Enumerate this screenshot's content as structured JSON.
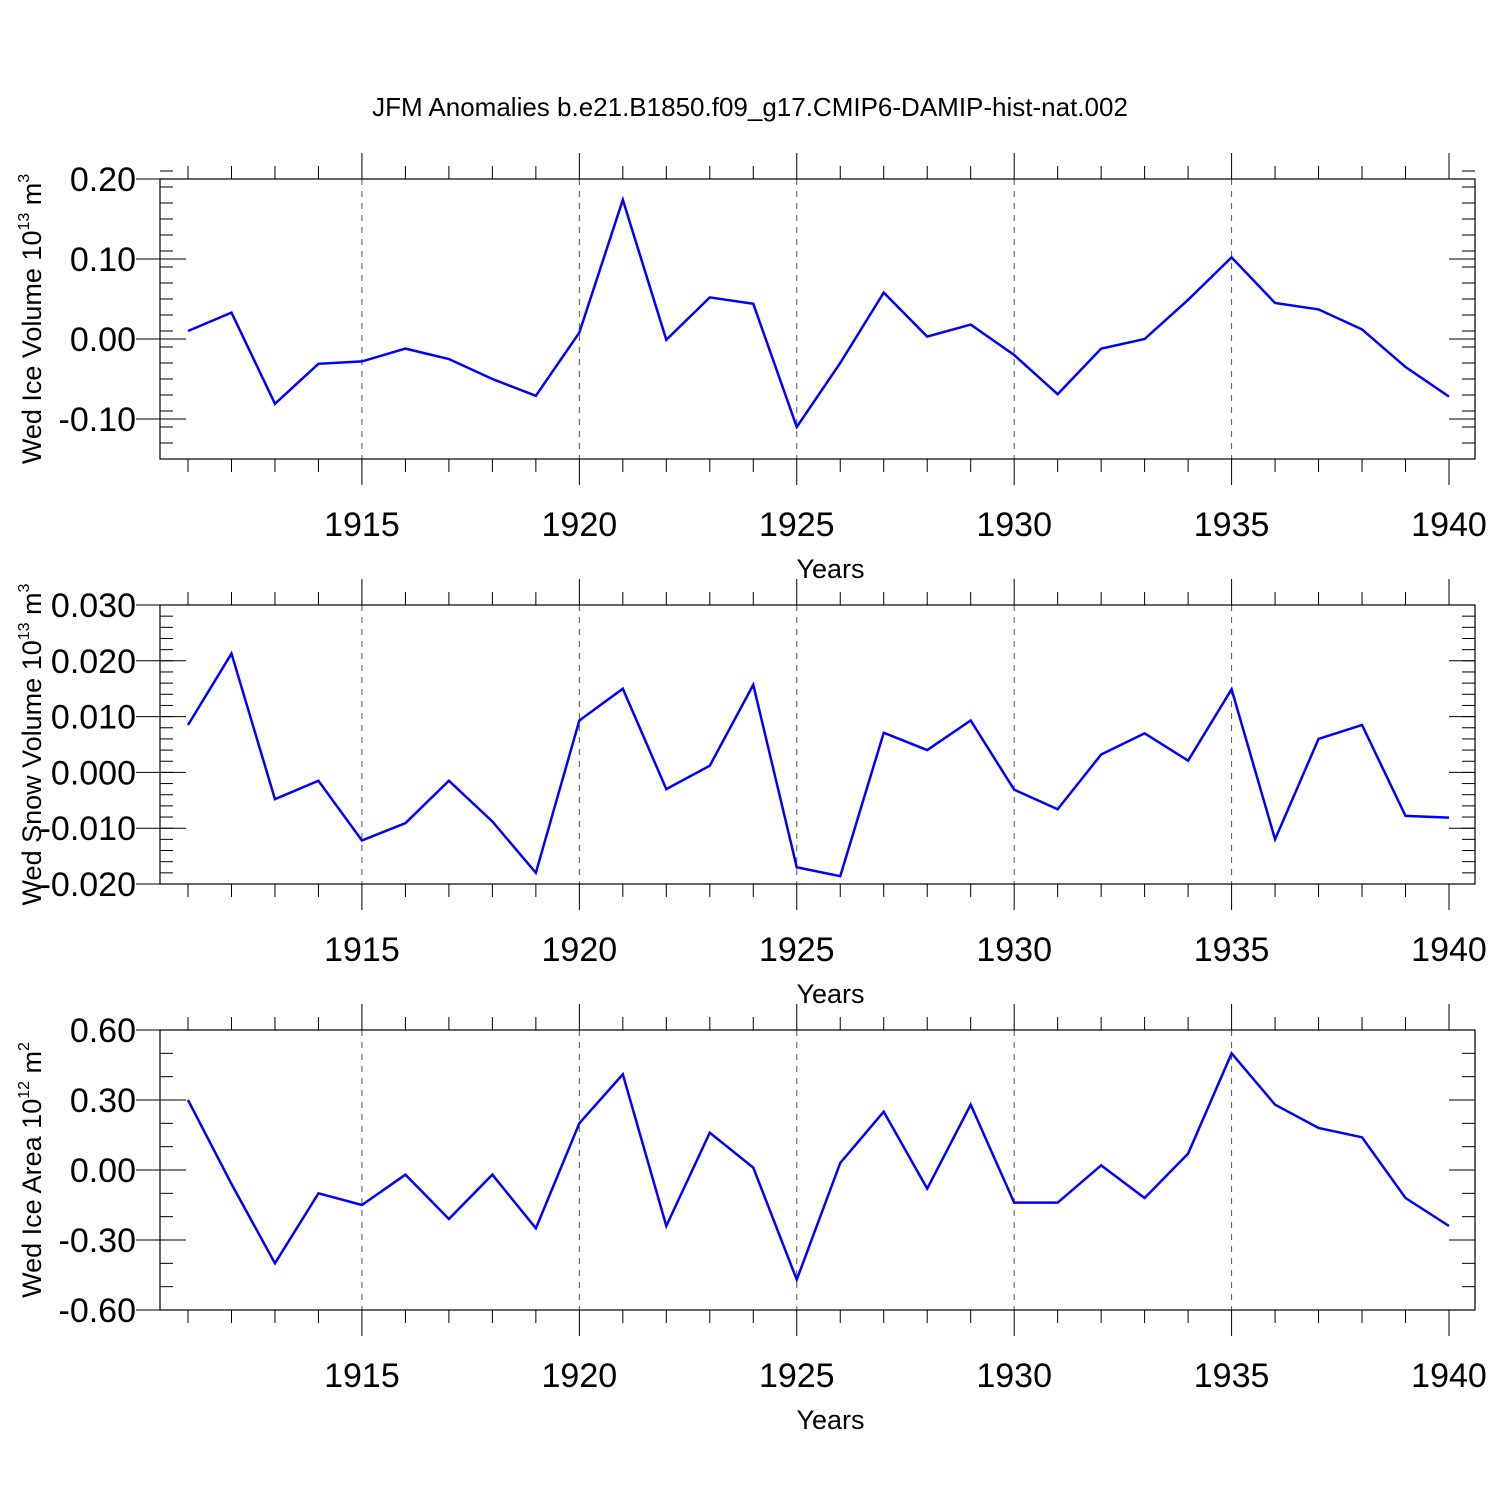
{
  "figure_title": "JFM Anomalies b.e21.B1850.f09_g17.CMIP6-DAMIP-hist-nat.002",
  "chart_data": [
    {
      "type": "line",
      "title": "",
      "ylabel": "Wed Ice Volume 10",
      "ylabel_exp": "13",
      "ylabel_unit": " m",
      "ylabel_unit_exp": "3",
      "xlabel": "Years",
      "xlim": [
        1911,
        1940
      ],
      "ylim": [
        -0.15,
        0.2
      ],
      "yticks": [
        0.2,
        0.1,
        0.0,
        -0.1
      ],
      "ytick_labels": [
        "0.20",
        "0.10",
        "0.00",
        "-0.10"
      ],
      "yminor_step": 0.02,
      "xticks": [
        1915,
        1920,
        1925,
        1930,
        1935,
        1940
      ],
      "xtick_labels": [
        "1915",
        "1920",
        "1925",
        "1930",
        "1935",
        "1940"
      ],
      "grid": "vertical dashed at major x ticks",
      "color": "#0000ff",
      "x": [
        1911,
        1912,
        1913,
        1914,
        1915,
        1916,
        1917,
        1918,
        1919,
        1920,
        1921,
        1922,
        1923,
        1924,
        1925,
        1926,
        1927,
        1928,
        1929,
        1930,
        1931,
        1932,
        1933,
        1934,
        1935,
        1936,
        1937,
        1938,
        1939,
        1940
      ],
      "values": [
        0.01,
        0.033,
        -0.081,
        -0.031,
        -0.028,
        -0.012,
        -0.025,
        -0.05,
        -0.071,
        0.008,
        0.174,
        -0.001,
        0.052,
        0.044,
        -0.11,
        -0.03,
        0.058,
        0.003,
        0.018,
        -0.02,
        -0.069,
        -0.012,
        0.0,
        0.049,
        0.102,
        0.045,
        0.037,
        0.012,
        -0.035,
        -0.072
      ]
    },
    {
      "type": "line",
      "title": "",
      "ylabel": "Wed Snow Volume 10",
      "ylabel_exp": "13",
      "ylabel_unit": " m",
      "ylabel_unit_exp": "3",
      "xlabel": "Years",
      "xlim": [
        1911,
        1940
      ],
      "ylim": [
        -0.02,
        0.03
      ],
      "yticks": [
        0.03,
        0.02,
        0.01,
        0.0,
        -0.01,
        -0.02
      ],
      "ytick_labels": [
        "0.030",
        "0.020",
        "0.010",
        "0.000",
        "-0.010",
        "-0.020"
      ],
      "yminor_step": 0.002,
      "xticks": [
        1915,
        1920,
        1925,
        1930,
        1935,
        1940
      ],
      "xtick_labels": [
        "1915",
        "1920",
        "1925",
        "1930",
        "1935",
        "1940"
      ],
      "grid": "vertical dashed at major x ticks",
      "color": "#0000ff",
      "x": [
        1911,
        1912,
        1913,
        1914,
        1915,
        1916,
        1917,
        1918,
        1919,
        1920,
        1921,
        1922,
        1923,
        1924,
        1925,
        1926,
        1927,
        1928,
        1929,
        1930,
        1931,
        1932,
        1933,
        1934,
        1935,
        1936,
        1937,
        1938,
        1939,
        1940
      ],
      "values": [
        0.0085,
        0.0213,
        -0.0048,
        -0.0015,
        -0.0122,
        -0.0091,
        -0.0015,
        -0.0088,
        -0.018,
        0.0093,
        0.015,
        -0.003,
        0.0012,
        0.0157,
        -0.017,
        -0.0186,
        0.0071,
        0.004,
        0.0093,
        -0.0031,
        -0.0066,
        0.0032,
        0.007,
        0.0021,
        0.0149,
        -0.012,
        0.006,
        0.0085,
        -0.0078,
        -0.0081
      ]
    },
    {
      "type": "line",
      "title": "",
      "ylabel": "Wed Ice Area 10",
      "ylabel_exp": "12",
      "ylabel_unit": " m",
      "ylabel_unit_exp": "2",
      "xlabel": "Years",
      "xlim": [
        1911,
        1940
      ],
      "ylim": [
        -0.6,
        0.6
      ],
      "yticks": [
        0.6,
        0.3,
        0.0,
        -0.3,
        -0.6
      ],
      "ytick_labels": [
        "0.60",
        "0.30",
        "0.00",
        "-0.30",
        "-0.60"
      ],
      "yminor_step": 0.1,
      "xticks": [
        1915,
        1920,
        1925,
        1930,
        1935,
        1940
      ],
      "xtick_labels": [
        "1915",
        "1920",
        "1925",
        "1930",
        "1935",
        "1940"
      ],
      "grid": "vertical dashed at major x ticks",
      "color": "#0000ff",
      "x": [
        1911,
        1912,
        1913,
        1914,
        1915,
        1916,
        1917,
        1918,
        1919,
        1920,
        1921,
        1922,
        1923,
        1924,
        1925,
        1926,
        1927,
        1928,
        1929,
        1930,
        1931,
        1932,
        1933,
        1934,
        1935,
        1936,
        1937,
        1938,
        1939,
        1940
      ],
      "values": [
        0.3,
        -0.06,
        -0.4,
        -0.1,
        -0.15,
        -0.02,
        -0.21,
        -0.02,
        -0.25,
        0.2,
        0.41,
        -0.24,
        0.16,
        0.01,
        -0.47,
        0.03,
        0.25,
        -0.08,
        0.28,
        -0.14,
        -0.14,
        0.02,
        -0.12,
        0.07,
        0.5,
        0.28,
        0.18,
        0.14,
        -0.12,
        -0.24
      ]
    }
  ]
}
